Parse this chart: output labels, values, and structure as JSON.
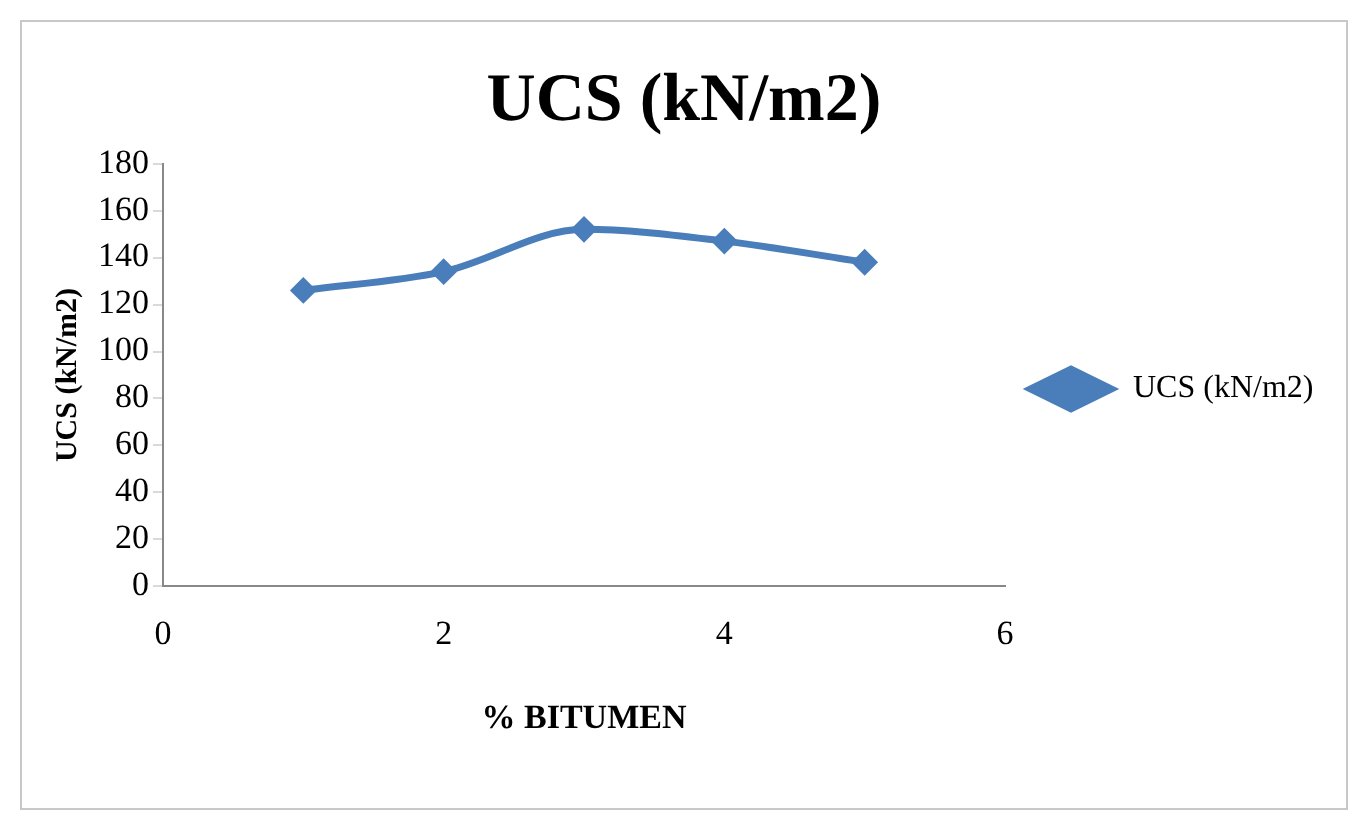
{
  "chart_data": {
    "type": "line",
    "title": "UCS (kN/m2)",
    "xlabel": "% BITUMEN",
    "ylabel": "UCS (kN/m2)",
    "x": [
      1,
      2,
      3,
      4,
      5
    ],
    "series": [
      {
        "name": "UCS (kN/m2)",
        "color": "#4a7ebb",
        "values": [
          126,
          134,
          152,
          147,
          138
        ]
      }
    ],
    "xlim": [
      0,
      6
    ],
    "xticks": [
      0,
      2,
      4,
      6
    ],
    "ylim": [
      0,
      180
    ],
    "yticks": [
      0,
      20,
      40,
      60,
      80,
      100,
      120,
      140,
      160,
      180
    ],
    "grid": false,
    "legend": "right",
    "marker": "diamond",
    "line_style": "solid"
  }
}
